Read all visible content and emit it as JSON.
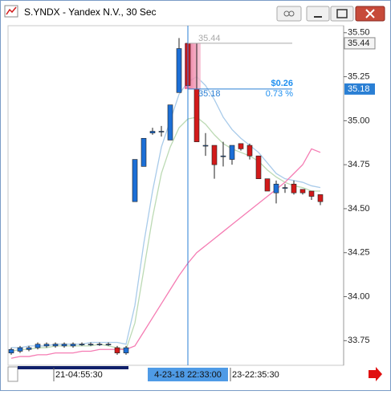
{
  "window": {
    "title": "S.YNDX - Yandex N.V., 30 Sec"
  },
  "chart_data": {
    "type": "candlestick",
    "categories": [
      null,
      null,
      null,
      null,
      null,
      "21-04:55:30",
      null,
      null,
      null,
      null,
      null,
      null,
      null,
      null,
      null,
      null,
      null,
      null,
      null,
      null,
      "4-23-18 22:33:00",
      null,
      null,
      null,
      null,
      "23-22:35:30",
      null,
      null,
      null,
      null,
      null,
      null,
      null,
      null,
      null,
      null
    ],
    "open": [
      33.68,
      33.69,
      33.7,
      33.71,
      33.72,
      33.72,
      33.72,
      33.72,
      33.73,
      33.73,
      33.73,
      33.73,
      33.71,
      33.68,
      34.54,
      34.74,
      34.93,
      34.94,
      34.89,
      35.16,
      35.44,
      35.18,
      34.86,
      34.86,
      34.8,
      34.78,
      34.87,
      34.86,
      34.8,
      34.67,
      34.59,
      34.62,
      34.64,
      34.61,
      34.6,
      34.58
    ],
    "high": [
      33.71,
      33.72,
      33.72,
      33.74,
      33.74,
      33.74,
      33.74,
      33.74,
      33.74,
      33.74,
      33.74,
      33.74,
      33.72,
      33.72,
      34.78,
      34.9,
      34.96,
      34.97,
      35.09,
      35.47,
      35.44,
      35.44,
      34.93,
      34.86,
      34.88,
      34.86,
      34.87,
      34.87,
      34.8,
      34.67,
      34.66,
      34.64,
      34.66,
      34.61,
      34.6,
      34.58
    ],
    "low": [
      33.67,
      33.68,
      33.69,
      33.7,
      33.71,
      33.71,
      33.71,
      33.71,
      33.72,
      33.72,
      33.72,
      33.72,
      33.67,
      33.67,
      34.54,
      34.74,
      34.92,
      34.91,
      34.89,
      35.16,
      35.18,
      34.88,
      34.8,
      34.67,
      34.74,
      34.75,
      34.83,
      34.78,
      34.67,
      34.6,
      34.53,
      34.59,
      34.58,
      34.58,
      34.55,
      34.52
    ],
    "close": [
      33.7,
      33.71,
      33.71,
      33.73,
      33.73,
      33.73,
      33.73,
      33.73,
      33.73,
      33.73,
      33.73,
      33.73,
      33.68,
      33.71,
      34.78,
      34.9,
      34.94,
      34.94,
      35.09,
      35.41,
      35.2,
      34.88,
      34.86,
      34.75,
      34.8,
      34.86,
      34.84,
      34.8,
      34.67,
      34.6,
      34.64,
      34.62,
      34.59,
      34.59,
      34.57,
      34.54
    ],
    "up_color": "#1c6fd6",
    "down_color": "#d21a1a",
    "series": [
      {
        "color": "#a9cbea",
        "values": [
          33.71,
          33.71,
          33.72,
          33.72,
          33.72,
          33.73,
          33.73,
          33.73,
          33.73,
          33.74,
          33.74,
          33.74,
          33.74,
          33.73,
          33.95,
          34.3,
          34.6,
          34.85,
          35.0,
          35.15,
          35.22,
          35.25,
          35.2,
          35.12,
          35.02,
          34.95,
          34.9,
          34.86,
          34.82,
          34.76,
          34.7,
          34.67,
          34.66,
          34.65,
          34.63,
          34.62
        ]
      },
      {
        "color": "#bcdab4",
        "values": [
          33.69,
          33.7,
          33.7,
          33.71,
          33.71,
          33.72,
          33.72,
          33.72,
          33.72,
          33.72,
          33.73,
          33.72,
          33.71,
          33.7,
          33.85,
          34.15,
          34.45,
          34.7,
          34.85,
          34.96,
          35.01,
          35.02,
          34.98,
          34.92,
          34.87,
          34.84,
          34.82,
          34.8,
          34.77,
          34.72,
          34.68,
          34.65,
          34.63,
          34.62,
          34.6,
          34.6
        ]
      },
      {
        "color": "#f57cb3",
        "values": [
          33.65,
          33.66,
          33.66,
          33.67,
          33.67,
          33.68,
          33.68,
          33.68,
          33.69,
          33.69,
          33.7,
          33.7,
          33.7,
          33.7,
          33.72,
          33.8,
          33.88,
          33.96,
          34.04,
          34.12,
          34.19,
          34.25,
          34.29,
          34.33,
          34.37,
          34.41,
          34.45,
          34.49,
          34.53,
          34.57,
          34.61,
          34.65,
          34.7,
          34.75,
          34.84,
          34.82
        ]
      }
    ],
    "ylim": [
      33.61,
      35.54
    ],
    "yticks": [
      {
        "value": 33.75,
        "label": "33.75"
      },
      {
        "value": 34,
        "label": "34.00"
      },
      {
        "value": 34.25,
        "label": "34.25"
      },
      {
        "value": 34.5,
        "label": "34.50"
      },
      {
        "value": 34.75,
        "label": "34.75"
      },
      {
        "value": 35,
        "label": "35.00"
      },
      {
        "value": 35.25,
        "label": "35.25"
      },
      {
        "value": 35.5,
        "label": "35.50"
      }
    ],
    "measure": {
      "high": 35.44,
      "low": 35.18,
      "change": {
        "value": 0.26,
        "label": "$0.26"
      },
      "percent": {
        "value": 0.73,
        "label": "0.73 %"
      }
    },
    "crosshair_index": 20
  }
}
